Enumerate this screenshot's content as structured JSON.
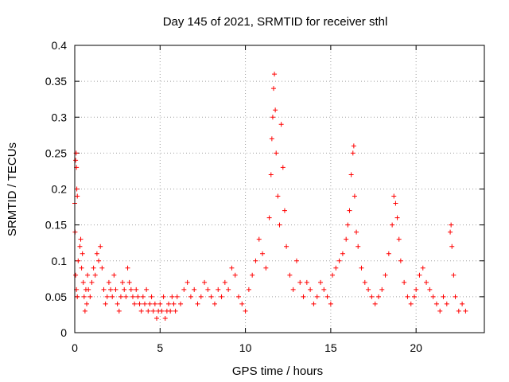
{
  "chart_data": {
    "type": "scatter",
    "title": "Day 145 of 2021, SRMTID for receiver sthl",
    "xlabel": "GPS time / hours",
    "ylabel": "SRMTID / TECUs",
    "xlim": [
      0,
      24
    ],
    "ylim": [
      0,
      0.4
    ],
    "xticks": [
      0,
      5,
      10,
      15,
      20
    ],
    "yticks": [
      0,
      0.05,
      0.1,
      0.15,
      0.2,
      0.25,
      0.3,
      0.35,
      0.4
    ],
    "ytick_labels": [
      "0",
      "0.05",
      "0.1",
      "0.15",
      "0.2",
      "0.25",
      "0.3",
      "0.35",
      "0.4"
    ],
    "xtick_labels": [
      "0",
      "5",
      "10",
      "15",
      "20"
    ],
    "grid": true,
    "marker": "plus",
    "color": "#ff0000",
    "series": [
      {
        "name": "SRMTID",
        "points": [
          [
            0.0,
            0.18
          ],
          [
            0.05,
            0.24
          ],
          [
            0.08,
            0.25
          ],
          [
            0.1,
            0.23
          ],
          [
            0.12,
            0.2
          ],
          [
            0.15,
            0.19
          ],
          [
            0.02,
            0.14
          ],
          [
            0.05,
            0.08
          ],
          [
            0.1,
            0.06
          ],
          [
            0.15,
            0.05
          ],
          [
            0.2,
            0.1
          ],
          [
            0.3,
            0.12
          ],
          [
            0.35,
            0.13
          ],
          [
            0.4,
            0.09
          ],
          [
            0.45,
            0.11
          ],
          [
            0.5,
            0.07
          ],
          [
            0.55,
            0.05
          ],
          [
            0.6,
            0.03
          ],
          [
            0.65,
            0.06
          ],
          [
            0.7,
            0.04
          ],
          [
            0.75,
            0.08
          ],
          [
            0.8,
            0.06
          ],
          [
            0.9,
            0.05
          ],
          [
            1.0,
            0.07
          ],
          [
            1.1,
            0.09
          ],
          [
            1.2,
            0.08
          ],
          [
            1.3,
            0.11
          ],
          [
            1.4,
            0.1
          ],
          [
            1.5,
            0.12
          ],
          [
            1.6,
            0.09
          ],
          [
            1.7,
            0.06
          ],
          [
            1.8,
            0.04
          ],
          [
            1.9,
            0.05
          ],
          [
            2.0,
            0.07
          ],
          [
            2.1,
            0.06
          ],
          [
            2.2,
            0.05
          ],
          [
            2.3,
            0.08
          ],
          [
            2.4,
            0.06
          ],
          [
            2.5,
            0.04
          ],
          [
            2.6,
            0.03
          ],
          [
            2.7,
            0.05
          ],
          [
            2.8,
            0.07
          ],
          [
            2.9,
            0.06
          ],
          [
            3.0,
            0.05
          ],
          [
            3.1,
            0.09
          ],
          [
            3.2,
            0.07
          ],
          [
            3.3,
            0.06
          ],
          [
            3.4,
            0.05
          ],
          [
            3.5,
            0.04
          ],
          [
            3.6,
            0.06
          ],
          [
            3.7,
            0.05
          ],
          [
            3.8,
            0.04
          ],
          [
            3.9,
            0.03
          ],
          [
            4.0,
            0.05
          ],
          [
            4.1,
            0.04
          ],
          [
            4.2,
            0.06
          ],
          [
            4.3,
            0.03
          ],
          [
            4.4,
            0.04
          ],
          [
            4.5,
            0.05
          ],
          [
            4.6,
            0.03
          ],
          [
            4.7,
            0.04
          ],
          [
            4.8,
            0.02
          ],
          [
            4.9,
            0.03
          ],
          [
            5.0,
            0.04
          ],
          [
            5.1,
            0.03
          ],
          [
            5.2,
            0.05
          ],
          [
            5.3,
            0.02
          ],
          [
            5.4,
            0.03
          ],
          [
            5.5,
            0.04
          ],
          [
            5.6,
            0.03
          ],
          [
            5.7,
            0.05
          ],
          [
            5.8,
            0.04
          ],
          [
            5.9,
            0.03
          ],
          [
            6.0,
            0.05
          ],
          [
            6.2,
            0.04
          ],
          [
            6.4,
            0.06
          ],
          [
            6.6,
            0.07
          ],
          [
            6.8,
            0.05
          ],
          [
            7.0,
            0.06
          ],
          [
            7.2,
            0.04
          ],
          [
            7.4,
            0.05
          ],
          [
            7.6,
            0.07
          ],
          [
            7.8,
            0.06
          ],
          [
            8.0,
            0.05
          ],
          [
            8.2,
            0.04
          ],
          [
            8.4,
            0.06
          ],
          [
            8.6,
            0.05
          ],
          [
            8.8,
            0.07
          ],
          [
            9.0,
            0.06
          ],
          [
            9.2,
            0.09
          ],
          [
            9.4,
            0.08
          ],
          [
            9.6,
            0.05
          ],
          [
            9.8,
            0.04
          ],
          [
            10.0,
            0.03
          ],
          [
            10.2,
            0.06
          ],
          [
            10.4,
            0.08
          ],
          [
            10.6,
            0.1
          ],
          [
            10.8,
            0.13
          ],
          [
            11.0,
            0.11
          ],
          [
            11.2,
            0.09
          ],
          [
            11.4,
            0.16
          ],
          [
            11.5,
            0.22
          ],
          [
            11.55,
            0.27
          ],
          [
            11.6,
            0.3
          ],
          [
            11.65,
            0.34
          ],
          [
            11.7,
            0.36
          ],
          [
            11.75,
            0.31
          ],
          [
            11.8,
            0.25
          ],
          [
            11.9,
            0.19
          ],
          [
            12.0,
            0.15
          ],
          [
            12.1,
            0.29
          ],
          [
            12.2,
            0.23
          ],
          [
            12.3,
            0.17
          ],
          [
            12.4,
            0.12
          ],
          [
            12.6,
            0.08
          ],
          [
            12.8,
            0.06
          ],
          [
            13.0,
            0.1
          ],
          [
            13.2,
            0.07
          ],
          [
            13.4,
            0.05
          ],
          [
            13.6,
            0.07
          ],
          [
            13.8,
            0.06
          ],
          [
            14.0,
            0.04
          ],
          [
            14.2,
            0.05
          ],
          [
            14.4,
            0.07
          ],
          [
            14.6,
            0.06
          ],
          [
            14.8,
            0.05
          ],
          [
            15.0,
            0.04
          ],
          [
            15.1,
            0.08
          ],
          [
            15.3,
            0.09
          ],
          [
            15.5,
            0.1
          ],
          [
            15.7,
            0.11
          ],
          [
            15.9,
            0.13
          ],
          [
            16.0,
            0.15
          ],
          [
            16.1,
            0.17
          ],
          [
            16.2,
            0.22
          ],
          [
            16.3,
            0.25
          ],
          [
            16.35,
            0.26
          ],
          [
            16.4,
            0.19
          ],
          [
            16.5,
            0.14
          ],
          [
            16.6,
            0.12
          ],
          [
            16.8,
            0.09
          ],
          [
            17.0,
            0.07
          ],
          [
            17.2,
            0.06
          ],
          [
            17.4,
            0.05
          ],
          [
            17.6,
            0.04
          ],
          [
            17.8,
            0.05
          ],
          [
            18.0,
            0.06
          ],
          [
            18.2,
            0.08
          ],
          [
            18.4,
            0.11
          ],
          [
            18.6,
            0.15
          ],
          [
            18.7,
            0.19
          ],
          [
            18.8,
            0.18
          ],
          [
            18.9,
            0.16
          ],
          [
            19.0,
            0.13
          ],
          [
            19.1,
            0.1
          ],
          [
            19.3,
            0.07
          ],
          [
            19.5,
            0.05
          ],
          [
            19.7,
            0.04
          ],
          [
            19.9,
            0.05
          ],
          [
            20.0,
            0.06
          ],
          [
            20.2,
            0.08
          ],
          [
            20.4,
            0.09
          ],
          [
            20.6,
            0.07
          ],
          [
            20.8,
            0.06
          ],
          [
            21.0,
            0.05
          ],
          [
            21.2,
            0.04
          ],
          [
            21.4,
            0.03
          ],
          [
            21.6,
            0.05
          ],
          [
            21.8,
            0.04
          ],
          [
            22.0,
            0.14
          ],
          [
            22.05,
            0.15
          ],
          [
            22.1,
            0.12
          ],
          [
            22.2,
            0.08
          ],
          [
            22.3,
            0.05
          ],
          [
            22.5,
            0.03
          ],
          [
            22.7,
            0.04
          ],
          [
            22.9,
            0.03
          ]
        ]
      }
    ]
  }
}
